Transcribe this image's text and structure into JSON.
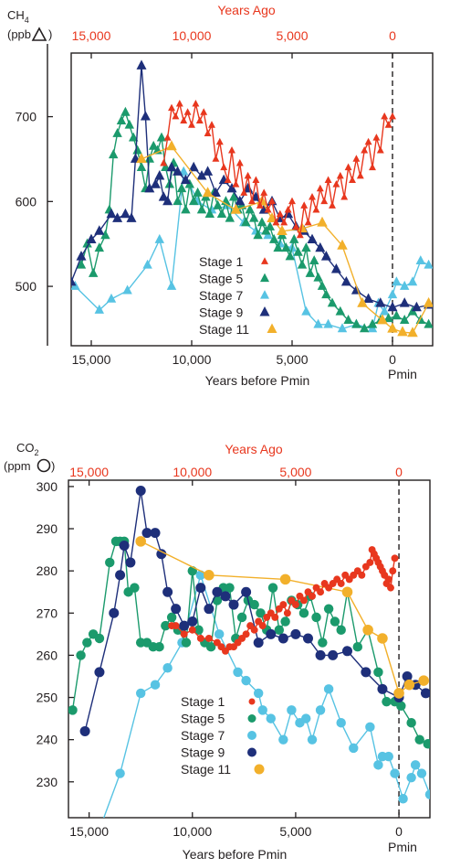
{
  "colors": {
    "stage1": "#e8371e",
    "stage5": "#1b9a6c",
    "stage7": "#57c3e3",
    "stage9": "#1e2f7a",
    "stage11": "#f2b02b",
    "axis": "#231f20",
    "top_axis": "#e8371e"
  },
  "chart_data": [
    {
      "type": "line",
      "id": "ch4",
      "ylabel_main": "CH",
      "ylabel_sub": "4",
      "ylabel_line2": "(ppb",
      "ylabel_close": ")",
      "marker_shape": "triangle",
      "top_axis_title": "Years Ago",
      "top_ticks": [
        "15,000",
        "10,000",
        "5,000",
        "0"
      ],
      "xlabel": "Years before Pmin",
      "x_ticks": [
        "15,000",
        "10,000",
        "5,000",
        "0"
      ],
      "pmin_label": "Pmin",
      "y_ticks": [
        500,
        600,
        700
      ],
      "xlim": [
        16000,
        -2000
      ],
      "ylim": [
        430,
        775
      ],
      "legend_position": "center",
      "series": [
        {
          "name": "Stage 1",
          "color": "#e8371e",
          "x": [
            11400,
            11200,
            11000,
            10800,
            10600,
            10400,
            10200,
            10000,
            9800,
            9600,
            9400,
            9200,
            9000,
            8800,
            8600,
            8400,
            8200,
            8000,
            7800,
            7600,
            7400,
            7200,
            7000,
            6800,
            6600,
            6400,
            6200,
            6000,
            5800,
            5600,
            5400,
            5200,
            5000,
            4800,
            4600,
            4400,
            4200,
            4000,
            3800,
            3600,
            3400,
            3200,
            3000,
            2800,
            2600,
            2400,
            2200,
            2000,
            1800,
            1600,
            1400,
            1200,
            1000,
            800,
            600,
            400,
            200,
            0
          ],
          "y": [
            645,
            675,
            710,
            700,
            715,
            695,
            705,
            690,
            715,
            695,
            705,
            680,
            690,
            650,
            670,
            640,
            625,
            660,
            620,
            645,
            610,
            630,
            600,
            625,
            595,
            610,
            590,
            600,
            575,
            585,
            575,
            590,
            600,
            570,
            560,
            595,
            575,
            605,
            590,
            615,
            600,
            625,
            595,
            620,
            630,
            605,
            640,
            625,
            650,
            630,
            660,
            670,
            640,
            675,
            660,
            700,
            690,
            700
          ]
        },
        {
          "name": "Stage 5",
          "color": "#1b9a6c",
          "x": [
            15500,
            15200,
            14900,
            14600,
            14300,
            14100,
            13900,
            13700,
            13500,
            13300,
            13100,
            12900,
            12700,
            12500,
            12300,
            12100,
            11900,
            11700,
            11500,
            11300,
            11100,
            10900,
            10700,
            10500,
            10300,
            10100,
            9900,
            9700,
            9500,
            9300,
            9100,
            8900,
            8700,
            8500,
            8300,
            8100,
            7900,
            7700,
            7500,
            7300,
            7100,
            6900,
            6700,
            6500,
            6300,
            6100,
            5900,
            5700,
            5500,
            5300,
            5100,
            4900,
            4700,
            4500,
            4300,
            4100,
            3900,
            3700,
            3500,
            3300,
            3000,
            2600,
            2200,
            1800,
            1400,
            1000,
            600,
            200,
            -200,
            -600,
            -1000,
            -1400,
            -1800
          ],
          "y": [
            525,
            550,
            515,
            545,
            560,
            590,
            655,
            680,
            695,
            705,
            690,
            675,
            660,
            640,
            615,
            650,
            665,
            660,
            675,
            640,
            620,
            645,
            600,
            615,
            590,
            620,
            600,
            610,
            590,
            605,
            585,
            610,
            595,
            585,
            600,
            580,
            605,
            590,
            595,
            575,
            590,
            580,
            560,
            575,
            565,
            570,
            555,
            545,
            560,
            545,
            535,
            555,
            540,
            525,
            545,
            515,
            530,
            510,
            500,
            490,
            480,
            470,
            460,
            455,
            450,
            455,
            460,
            462,
            465,
            460,
            470,
            460,
            455
          ]
        },
        {
          "name": "Stage 7",
          "color": "#57c3e3",
          "x": [
            15800,
            14600,
            14000,
            13200,
            12200,
            11600,
            11000,
            10400,
            9700,
            9000,
            8200,
            7400,
            6800,
            6200,
            5600,
            5000,
            4300,
            3700,
            3200,
            2500,
            1800,
            1000,
            700,
            400,
            0,
            -200,
            -600,
            -1000,
            -1400,
            -1800
          ],
          "y": [
            500,
            472,
            485,
            495,
            525,
            555,
            500,
            635,
            600,
            590,
            595,
            575,
            565,
            560,
            550,
            545,
            470,
            455,
            455,
            450,
            455,
            450,
            480,
            470,
            490,
            505,
            500,
            505,
            530,
            525
          ]
        },
        {
          "name": "Stage 9",
          "color": "#1e2f7a",
          "x": [
            16000,
            15500,
            15000,
            14600,
            14000,
            13700,
            13300,
            13000,
            12800,
            12500,
            12300,
            12100,
            11800,
            11600,
            11400,
            11200,
            11000,
            10700,
            10300,
            9900,
            9500,
            9200,
            8800,
            8400,
            8000,
            7600,
            7200,
            6800,
            6400,
            6000,
            5600,
            5200,
            4800,
            4400,
            4000,
            3600,
            3300,
            2800,
            2300,
            1800,
            1200,
            600,
            0,
            -600,
            -1200,
            -1800
          ],
          "y": [
            505,
            535,
            555,
            565,
            585,
            580,
            585,
            580,
            650,
            760,
            700,
            615,
            620,
            630,
            605,
            600,
            640,
            635,
            625,
            640,
            630,
            635,
            610,
            625,
            615,
            600,
            615,
            605,
            590,
            600,
            580,
            585,
            570,
            565,
            555,
            545,
            535,
            520,
            505,
            495,
            485,
            480,
            475,
            480,
            475,
            478
          ]
        },
        {
          "name": "Stage 11",
          "color": "#f2b02b",
          "x": [
            12500,
            11000,
            9200,
            7800,
            6500,
            6000,
            5500,
            4500,
            3500,
            2500,
            1500,
            500,
            0,
            -500,
            -1000,
            -1800
          ],
          "y": [
            650,
            665,
            610,
            590,
            600,
            580,
            565,
            568,
            575,
            548,
            480,
            460,
            450,
            446,
            445,
            480
          ]
        }
      ]
    },
    {
      "type": "line",
      "id": "co2",
      "ylabel_main": "CO",
      "ylabel_sub": "2",
      "ylabel_line2": "(ppm",
      "ylabel_close": ")",
      "marker_shape": "circle",
      "top_axis_title": "Years Ago",
      "top_ticks": [
        "15,000",
        "10,000",
        "5,000",
        "0"
      ],
      "xlabel": "Years before Pmin",
      "x_ticks": [
        "15,000",
        "10,000",
        "5,000",
        "0"
      ],
      "pmin_label": "Pmin",
      "y_ticks": [
        230,
        240,
        250,
        260,
        270,
        280,
        290,
        300
      ],
      "xlim": [
        16000,
        -1500
      ],
      "ylim": [
        221.5,
        301.5
      ],
      "legend_position": "bottom-left",
      "series": [
        {
          "name": "Stage 1",
          "color": "#e8371e",
          "x": [
            11000,
            10800,
            10400,
            10000,
            9600,
            9200,
            8800,
            8600,
            8400,
            8200,
            8000,
            7800,
            7600,
            7400,
            7200,
            7000,
            6800,
            6600,
            6400,
            6200,
            6000,
            5800,
            5600,
            5400,
            5200,
            5000,
            4800,
            4600,
            4400,
            4200,
            4000,
            3800,
            3600,
            3400,
            3200,
            3000,
            2800,
            2600,
            2400,
            2200,
            2000,
            1800,
            1600,
            1400,
            1300,
            1200,
            1100,
            1000,
            900,
            800,
            700,
            600,
            500,
            400,
            300,
            200
          ],
          "y": [
            267,
            267,
            265,
            266,
            264,
            264,
            263,
            262,
            261,
            262,
            262,
            263,
            264,
            265,
            267,
            266,
            268,
            267,
            269,
            270,
            269,
            271,
            272,
            270,
            273,
            272,
            274,
            273,
            275,
            274,
            276,
            275,
            277,
            276,
            277,
            278,
            277,
            279,
            278,
            279,
            280,
            279,
            281,
            282,
            285,
            284,
            283,
            282,
            281,
            280,
            279,
            277,
            278,
            276,
            280,
            283
          ]
        },
        {
          "name": "Stage 5",
          "color": "#1b9a6c",
          "x": [
            15800,
            15400,
            15100,
            14800,
            14500,
            14000,
            13700,
            13500,
            13300,
            13100,
            12800,
            12500,
            12200,
            11900,
            11600,
            11300,
            11000,
            10700,
            10300,
            10000,
            9700,
            9400,
            9100,
            8800,
            8500,
            8200,
            7900,
            7600,
            7300,
            7000,
            6700,
            6400,
            6100,
            5800,
            5500,
            5200,
            4900,
            4600,
            4300,
            4000,
            3700,
            3400,
            3100,
            2800,
            2500,
            2000,
            1500,
            1000,
            600,
            200,
            -100,
            -600,
            -1000,
            -1400
          ],
          "y": [
            247,
            260,
            263,
            265,
            264,
            282,
            287,
            287,
            287,
            275,
            276,
            263,
            263,
            262,
            262,
            267,
            269,
            266,
            263,
            280,
            266,
            263,
            262,
            273,
            276,
            276,
            264,
            269,
            273,
            272,
            270,
            266,
            276,
            266,
            268,
            273,
            272,
            270,
            274,
            269,
            263,
            271,
            268,
            266,
            275,
            262,
            266,
            256,
            249,
            249,
            248,
            244,
            240,
            239
          ]
        },
        {
          "name": "Stage 7",
          "color": "#57c3e3",
          "x": [
            14700,
            13500,
            12500,
            11800,
            11200,
            10500,
            9600,
            8700,
            7800,
            7400,
            6800,
            6600,
            6200,
            5600,
            5200,
            4800,
            4500,
            4200,
            3800,
            3400,
            2800,
            2200,
            1400,
            1000,
            800,
            500,
            200,
            -200,
            -600,
            -800,
            -1100,
            -1500
          ],
          "y": [
            216,
            232,
            251,
            253,
            257,
            263,
            279,
            265,
            256,
            254,
            251,
            247,
            245,
            240,
            247,
            244,
            245,
            240,
            247,
            252,
            244,
            238,
            243,
            234,
            236,
            236,
            232,
            226,
            231,
            234,
            232,
            227
          ]
        },
        {
          "name": "Stage 9",
          "color": "#1e2f7a",
          "x": [
            15200,
            14500,
            13800,
            13500,
            13300,
            13000,
            12500,
            12200,
            11800,
            11500,
            11200,
            10800,
            10400,
            10000,
            9600,
            9200,
            8800,
            8400,
            8000,
            7400,
            6800,
            6200,
            5600,
            5000,
            4400,
            3800,
            3200,
            2500,
            1600,
            800,
            0,
            -400,
            -800,
            -1300
          ],
          "y": [
            242,
            256,
            270,
            279,
            286,
            282,
            299,
            289,
            289,
            284,
            275,
            271,
            267,
            268,
            276,
            271,
            275,
            274,
            272,
            275,
            263,
            265,
            264,
            265,
            264,
            260,
            260,
            261,
            256,
            252,
            250,
            255,
            253,
            251
          ]
        },
        {
          "name": "Stage 11",
          "color": "#f2b02b",
          "x": [
            12500,
            9200,
            5500,
            2500,
            1500,
            800,
            0,
            -500,
            -1200
          ],
          "y": [
            287,
            279,
            278,
            275,
            266,
            264,
            251,
            253,
            254
          ]
        }
      ]
    }
  ]
}
